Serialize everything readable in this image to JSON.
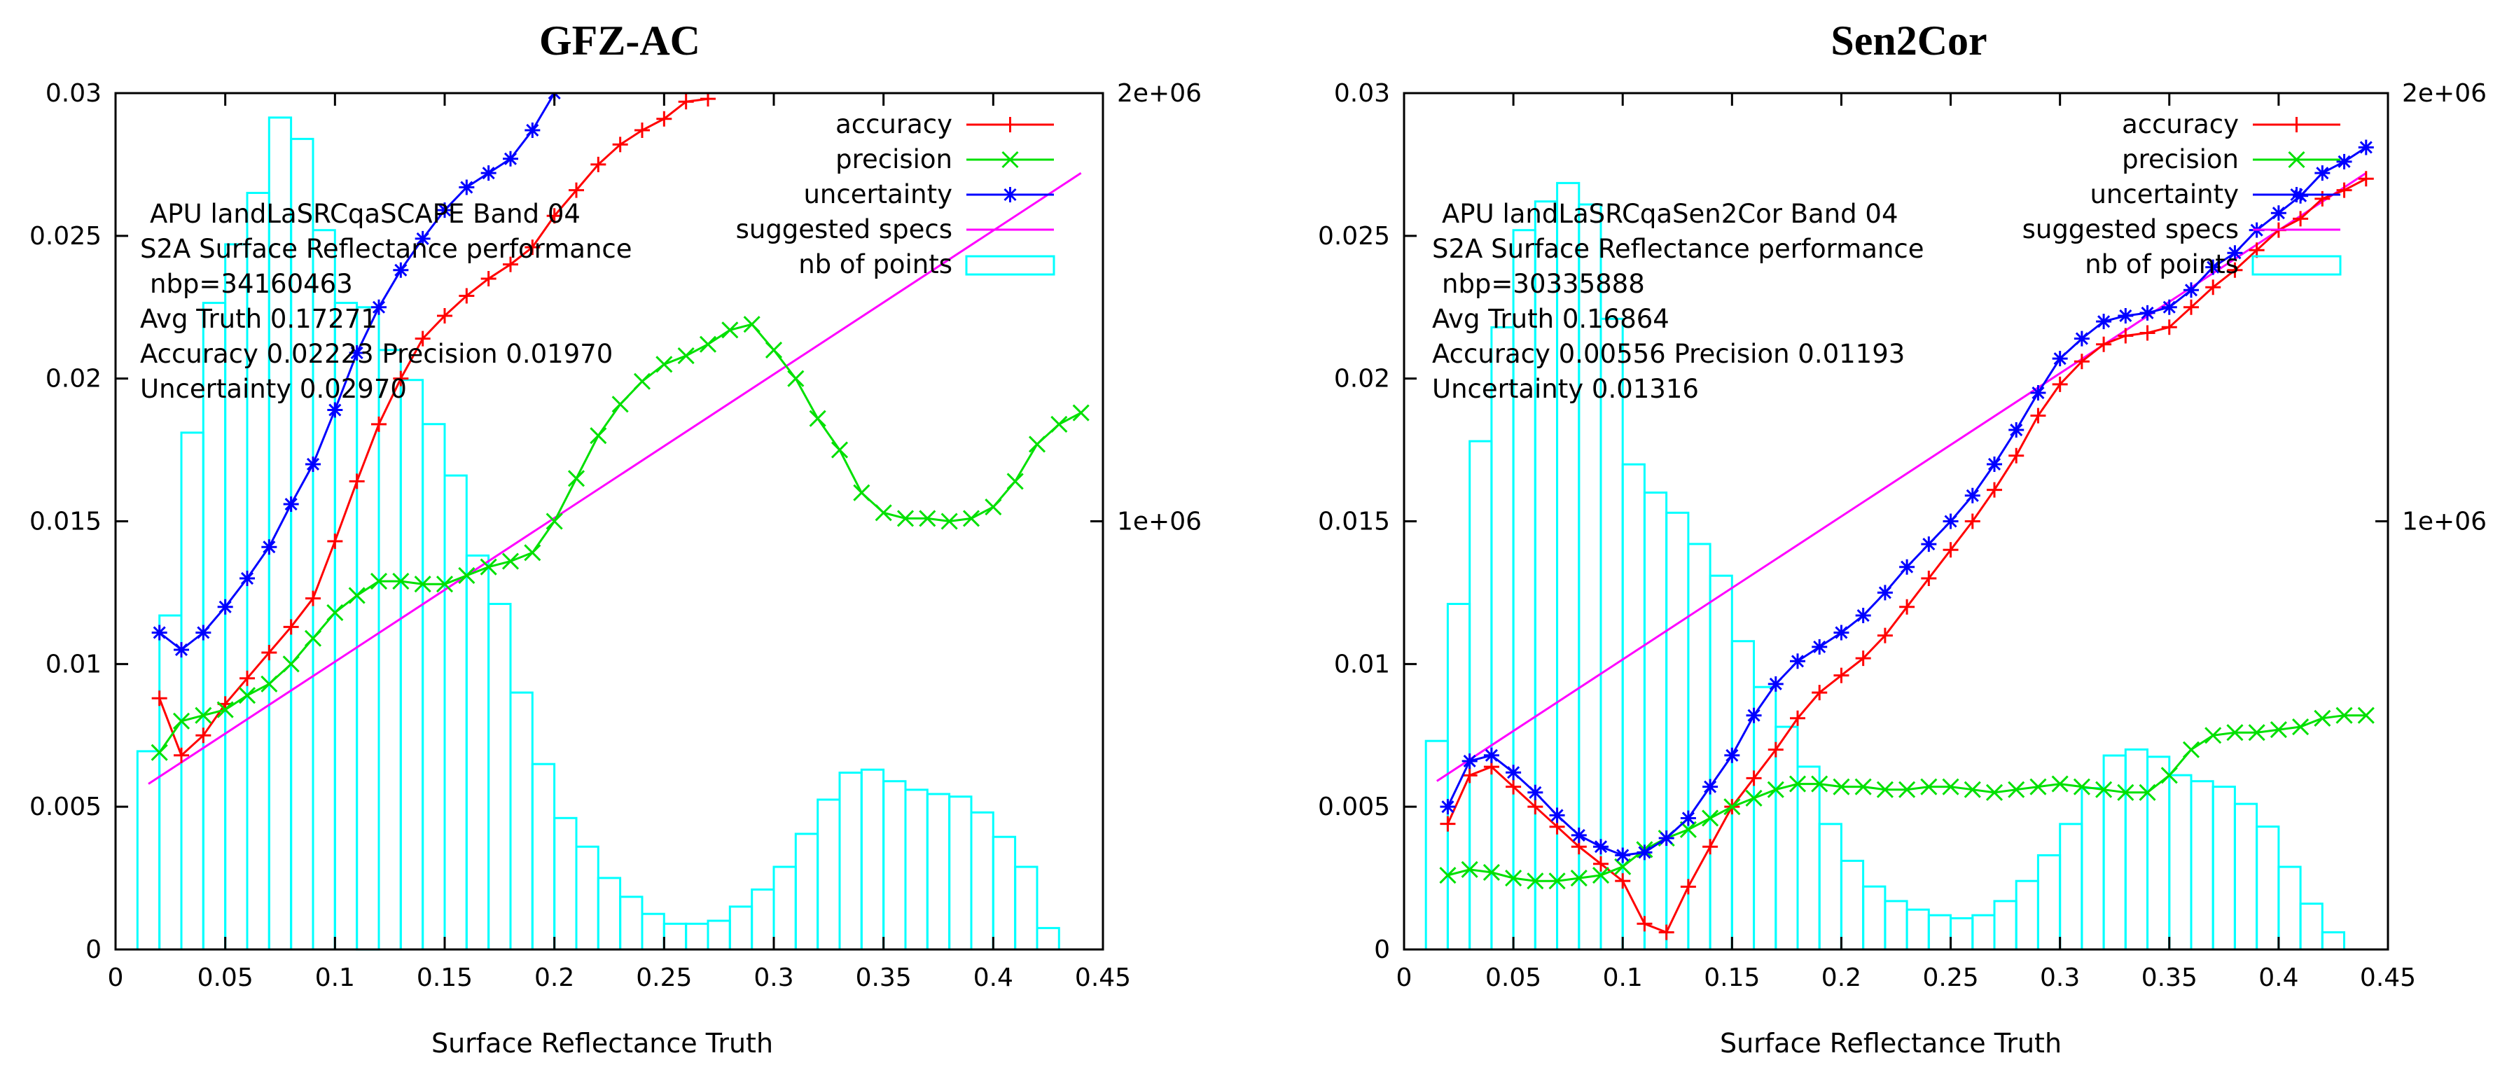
{
  "chart_data": [
    {
      "type": "line",
      "title": "GFZ-AC",
      "xlabel": "Surface Reflectance Truth",
      "ylabel": "",
      "xlim": [
        0,
        0.45
      ],
      "ylim": [
        0,
        0.03
      ],
      "y2lim": [
        0,
        2000000
      ],
      "xticks": [
        "0",
        "0.05",
        "0.1",
        "0.15",
        "0.2",
        "0.25",
        "0.3",
        "0.35",
        "0.4",
        "0.45"
      ],
      "yticks": [
        "0",
        "0.005",
        "0.01",
        "0.015",
        "0.02",
        "0.025",
        "0.03"
      ],
      "y2ticks": [
        "1e+06",
        "2e+06"
      ],
      "info_lines": [
        "APU landLaSRCqaSCAPE Band 04",
        "S2A Surface Reflectance performance",
        "nbp=34160463",
        "Avg Truth 0.17271",
        "Accuracy 0.02223 Precision 0.01970",
        "Uncertainty 0.02970"
      ],
      "legend": [
        "accuracy",
        "precision",
        "uncertainty",
        "suggested specs",
        "nb of points"
      ],
      "specs": [
        [
          0.015,
          0.0058
        ],
        [
          0.44,
          0.0272
        ]
      ],
      "hist_x": [
        0.015,
        0.025,
        0.035,
        0.045,
        0.055,
        0.065,
        0.075,
        0.085,
        0.095,
        0.105,
        0.115,
        0.125,
        0.135,
        0.145,
        0.155,
        0.165,
        0.175,
        0.185,
        0.195,
        0.205,
        0.215,
        0.225,
        0.235,
        0.245,
        0.255,
        0.265,
        0.275,
        0.285,
        0.295,
        0.305,
        0.315,
        0.325,
        0.335,
        0.345,
        0.355,
        0.365,
        0.375,
        0.385,
        0.395,
        0.405,
        0.415,
        0.425
      ],
      "hist_values": [
        463000,
        780000,
        1207000,
        1510000,
        1647000,
        1767000,
        1943000,
        1893000,
        1680000,
        1510000,
        1500000,
        1400000,
        1330000,
        1227000,
        1107000,
        920000,
        807000,
        600000,
        433000,
        307000,
        240000,
        167000,
        123000,
        83000,
        60000,
        60000,
        67000,
        100000,
        140000,
        193000,
        270000,
        350000,
        413000,
        420000,
        393000,
        373000,
        363000,
        357000,
        320000,
        263000,
        193000,
        50000
      ],
      "series": [
        {
          "name": "accuracy",
          "x": [
            0.02,
            0.03,
            0.04,
            0.05,
            0.06,
            0.07,
            0.08,
            0.09,
            0.1,
            0.11,
            0.12,
            0.13,
            0.14,
            0.15,
            0.16,
            0.17,
            0.18,
            0.19,
            0.2,
            0.21,
            0.22,
            0.23,
            0.24,
            0.25,
            0.26,
            0.27
          ],
          "values": [
            0.0088,
            0.0068,
            0.0075,
            0.0086,
            0.0095,
            0.0104,
            0.0113,
            0.0123,
            0.0143,
            0.0164,
            0.0184,
            0.02,
            0.0214,
            0.0222,
            0.0229,
            0.0235,
            0.024,
            0.0246,
            0.0257,
            0.0266,
            0.0275,
            0.0282,
            0.0287,
            0.0291,
            0.0297,
            0.0298
          ]
        },
        {
          "name": "precision",
          "x": [
            0.02,
            0.03,
            0.04,
            0.05,
            0.06,
            0.07,
            0.08,
            0.09,
            0.1,
            0.11,
            0.12,
            0.13,
            0.14,
            0.15,
            0.16,
            0.17,
            0.18,
            0.19,
            0.2,
            0.21,
            0.22,
            0.23,
            0.24,
            0.25,
            0.26,
            0.27,
            0.28,
            0.29,
            0.3,
            0.31,
            0.32,
            0.33,
            0.34,
            0.35,
            0.36,
            0.37,
            0.38,
            0.39,
            0.4,
            0.41,
            0.42,
            0.43,
            0.44
          ],
          "values": [
            0.0069,
            0.008,
            0.0082,
            0.0084,
            0.0089,
            0.0093,
            0.01,
            0.0109,
            0.0118,
            0.0124,
            0.0129,
            0.0129,
            0.0128,
            0.0128,
            0.0131,
            0.0134,
            0.0136,
            0.0139,
            0.015,
            0.0165,
            0.018,
            0.0191,
            0.0199,
            0.0205,
            0.0208,
            0.0212,
            0.0217,
            0.0219,
            0.021,
            0.02,
            0.0186,
            0.0175,
            0.016,
            0.0153,
            0.0151,
            0.0151,
            0.015,
            0.0151,
            0.0155,
            0.0164,
            0.0177,
            0.0184,
            0.0188
          ]
        },
        {
          "name": "uncertainty",
          "x": [
            0.02,
            0.03,
            0.04,
            0.05,
            0.06,
            0.07,
            0.08,
            0.09,
            0.1,
            0.11,
            0.12,
            0.13,
            0.14,
            0.15,
            0.16,
            0.17,
            0.18,
            0.19,
            0.2
          ],
          "values": [
            0.0111,
            0.0105,
            0.0111,
            0.012,
            0.013,
            0.0141,
            0.0156,
            0.017,
            0.0189,
            0.0209,
            0.0225,
            0.0238,
            0.0249,
            0.0259,
            0.0267,
            0.0272,
            0.0277,
            0.0287,
            0.03
          ]
        }
      ]
    },
    {
      "type": "line",
      "title": "Sen2Cor",
      "xlabel": "Surface Reflectance Truth",
      "ylabel": "",
      "xlim": [
        0,
        0.45
      ],
      "ylim": [
        0,
        0.03
      ],
      "y2lim": [
        0,
        2000000
      ],
      "xticks": [
        "0",
        "0.05",
        "0.1",
        "0.15",
        "0.2",
        "0.25",
        "0.3",
        "0.35",
        "0.4",
        "0.45"
      ],
      "yticks": [
        "0",
        "0.005",
        "0.01",
        "0.015",
        "0.02",
        "0.025",
        "0.03"
      ],
      "y2ticks": [
        "1e+06",
        "2e+06"
      ],
      "info_lines": [
        "APU landLaSRCqaSen2Cor Band 04",
        "S2A Surface Reflectance performance",
        "nbp=30335888",
        "Avg Truth 0.16864",
        "Accuracy 0.00556 Precision 0.01193",
        "Uncertainty 0.01316"
      ],
      "legend": [
        "accuracy",
        "precision",
        "uncertainty",
        "suggested specs",
        "nb of points"
      ],
      "specs": [
        [
          0.015,
          0.0059
        ],
        [
          0.44,
          0.0272
        ]
      ],
      "hist_x": [
        0.015,
        0.025,
        0.035,
        0.045,
        0.055,
        0.065,
        0.075,
        0.085,
        0.095,
        0.105,
        0.115,
        0.125,
        0.135,
        0.145,
        0.155,
        0.165,
        0.175,
        0.185,
        0.195,
        0.205,
        0.215,
        0.225,
        0.235,
        0.245,
        0.255,
        0.265,
        0.275,
        0.285,
        0.295,
        0.305,
        0.315,
        0.325,
        0.335,
        0.345,
        0.355,
        0.365,
        0.375,
        0.385,
        0.395,
        0.405,
        0.415,
        0.425
      ],
      "hist_values": [
        487000,
        807000,
        1187000,
        1453000,
        1680000,
        1747000,
        1790000,
        1740000,
        1473000,
        1133000,
        1067000,
        1020000,
        947000,
        873000,
        720000,
        613000,
        520000,
        427000,
        293000,
        207000,
        147000,
        113000,
        93000,
        80000,
        73000,
        80000,
        113000,
        160000,
        220000,
        293000,
        377000,
        453000,
        467000,
        450000,
        407000,
        393000,
        380000,
        340000,
        287000,
        193000,
        107000,
        40000
      ],
      "series": [
        {
          "name": "accuracy",
          "x": [
            0.02,
            0.03,
            0.04,
            0.05,
            0.06,
            0.07,
            0.08,
            0.09,
            0.1,
            0.11,
            0.12,
            0.13,
            0.14,
            0.15,
            0.16,
            0.17,
            0.18,
            0.19,
            0.2,
            0.21,
            0.22,
            0.23,
            0.24,
            0.25,
            0.26,
            0.27,
            0.28,
            0.29,
            0.3,
            0.31,
            0.32,
            0.33,
            0.34,
            0.35,
            0.36,
            0.37,
            0.38,
            0.39,
            0.4,
            0.41,
            0.42,
            0.43,
            0.44
          ],
          "values": [
            0.0044,
            0.0061,
            0.0064,
            0.0057,
            0.005,
            0.0043,
            0.0036,
            0.003,
            0.0024,
            0.0009,
            0.0006,
            0.0022,
            0.0036,
            0.005,
            0.006,
            0.007,
            0.0081,
            0.009,
            0.0096,
            0.0102,
            0.011,
            0.012,
            0.013,
            0.014,
            0.015,
            0.0161,
            0.0173,
            0.0187,
            0.0198,
            0.0206,
            0.0212,
            0.0215,
            0.0216,
            0.0218,
            0.0225,
            0.0232,
            0.0238,
            0.0245,
            0.0252,
            0.0256,
            0.0263,
            0.0266,
            0.027
          ]
        },
        {
          "name": "precision",
          "x": [
            0.02,
            0.03,
            0.04,
            0.05,
            0.06,
            0.07,
            0.08,
            0.09,
            0.1,
            0.11,
            0.12,
            0.13,
            0.14,
            0.15,
            0.16,
            0.17,
            0.18,
            0.19,
            0.2,
            0.21,
            0.22,
            0.23,
            0.24,
            0.25,
            0.26,
            0.27,
            0.28,
            0.29,
            0.3,
            0.31,
            0.32,
            0.33,
            0.34,
            0.35,
            0.36,
            0.37,
            0.38,
            0.39,
            0.4,
            0.41,
            0.42,
            0.43,
            0.44
          ],
          "values": [
            0.0026,
            0.0028,
            0.0027,
            0.0025,
            0.0024,
            0.0024,
            0.0025,
            0.0026,
            0.0029,
            0.0035,
            0.0039,
            0.0042,
            0.0046,
            0.005,
            0.0053,
            0.0056,
            0.0058,
            0.0058,
            0.0057,
            0.0057,
            0.0056,
            0.0056,
            0.0057,
            0.0057,
            0.0056,
            0.0055,
            0.0056,
            0.0057,
            0.0058,
            0.0057,
            0.0056,
            0.0055,
            0.0055,
            0.0061,
            0.007,
            0.0075,
            0.0076,
            0.0076,
            0.0077,
            0.0078,
            0.0081,
            0.0082,
            0.0082
          ]
        },
        {
          "name": "uncertainty",
          "x": [
            0.02,
            0.03,
            0.04,
            0.05,
            0.06,
            0.07,
            0.08,
            0.09,
            0.1,
            0.11,
            0.12,
            0.13,
            0.14,
            0.15,
            0.16,
            0.17,
            0.18,
            0.19,
            0.2,
            0.21,
            0.22,
            0.23,
            0.24,
            0.25,
            0.26,
            0.27,
            0.28,
            0.29,
            0.3,
            0.31,
            0.32,
            0.33,
            0.34,
            0.35,
            0.36,
            0.37,
            0.38,
            0.39,
            0.4,
            0.41,
            0.42,
            0.43,
            0.44
          ],
          "values": [
            0.005,
            0.0066,
            0.0068,
            0.0062,
            0.0055,
            0.0047,
            0.004,
            0.0036,
            0.0033,
            0.0034,
            0.0039,
            0.0046,
            0.0057,
            0.0068,
            0.0082,
            0.0093,
            0.0101,
            0.0106,
            0.0111,
            0.0117,
            0.0125,
            0.0134,
            0.0142,
            0.015,
            0.0159,
            0.017,
            0.0182,
            0.0195,
            0.0207,
            0.0214,
            0.022,
            0.0222,
            0.0223,
            0.0225,
            0.0231,
            0.0239,
            0.0244,
            0.0252,
            0.0258,
            0.0264,
            0.0272,
            0.0276,
            0.0281
          ]
        }
      ]
    }
  ],
  "colors": {
    "accuracy": "#ff0000",
    "precision": "#00e000",
    "uncertainty": "#0000ff",
    "specs": "#ff00ff",
    "histogram": "#00ffff",
    "axis": "#000000"
  }
}
